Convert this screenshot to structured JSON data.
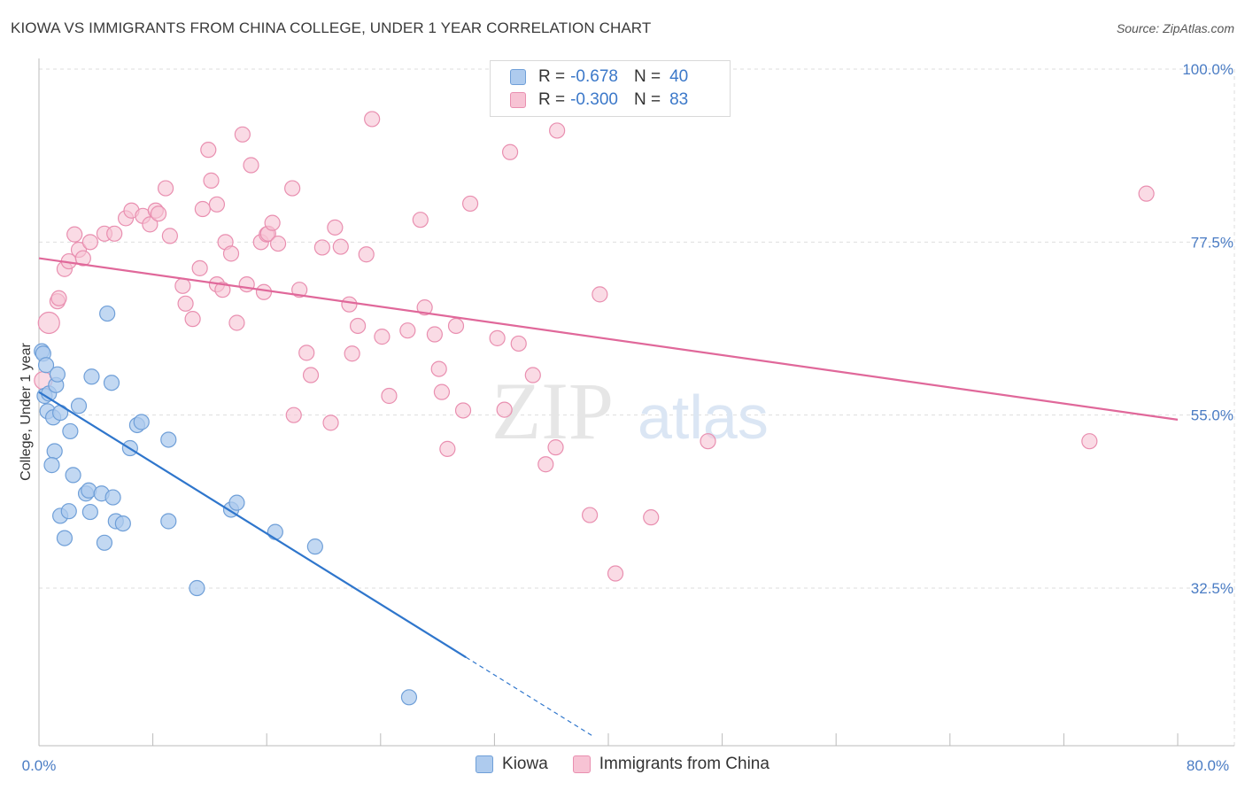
{
  "header": {
    "title": "KIOWA VS IMMIGRANTS FROM CHINA COLLEGE, UNDER 1 YEAR CORRELATION CHART",
    "source": "Source: ZipAtlas.com"
  },
  "watermark": {
    "part1": "ZIP",
    "part2": "atlas"
  },
  "legend": {
    "rows": [
      {
        "r_label": "R =",
        "r_value": "-0.678",
        "n_label": "N =",
        "n_value": "40"
      },
      {
        "r_label": "R =",
        "r_value": "-0.300",
        "n_label": "N =",
        "n_value": "83"
      }
    ]
  },
  "bottom_legend": {
    "kiowa": "Kiowa",
    "china": "Immigrants from China"
  },
  "colors": {
    "kiowa_fill": "#aecbee",
    "kiowa_stroke": "#6f9fd8",
    "kiowa_line": "#2f76cc",
    "china_fill": "#f7c3d4",
    "china_stroke": "#e98fb0",
    "china_line": "#e0689a",
    "grid": "#dedede",
    "axis_label": "#4a7cc4"
  },
  "chart_data": {
    "type": "scatter",
    "title": "KIOWA VS IMMIGRANTS FROM CHINA COLLEGE, UNDER 1 YEAR CORRELATION CHART",
    "xlabel": "",
    "ylabel": "College, Under 1 year",
    "xlim": [
      0,
      80
    ],
    "ylim": [
      12,
      100
    ],
    "x_tick_labels": [
      "0.0%",
      "80.0%"
    ],
    "y_ticks": [
      32.5,
      55.0,
      77.5,
      100.0
    ],
    "y_tick_labels": [
      "32.5%",
      "55.0%",
      "77.5%",
      "100.0%"
    ],
    "series": [
      {
        "name": "Kiowa",
        "R": -0.678,
        "N": 40,
        "trend": {
          "x0": 0,
          "y0": 58.0,
          "x1": 30,
          "y1": 23.5,
          "dash_to_x": 39
        },
        "points": [
          [
            0.2,
            63.3
          ],
          [
            0.3,
            63.0
          ],
          [
            0.5,
            61.5
          ],
          [
            0.4,
            57.5
          ],
          [
            0.7,
            57.8
          ],
          [
            1.2,
            58.9
          ],
          [
            1.3,
            60.3
          ],
          [
            0.6,
            55.5
          ],
          [
            1.0,
            54.7
          ],
          [
            1.5,
            55.3
          ],
          [
            2.8,
            56.2
          ],
          [
            1.1,
            50.3
          ],
          [
            0.9,
            48.5
          ],
          [
            2.2,
            52.9
          ],
          [
            3.7,
            60.0
          ],
          [
            5.1,
            59.2
          ],
          [
            6.9,
            53.7
          ],
          [
            7.2,
            54.1
          ],
          [
            6.4,
            50.7
          ],
          [
            9.1,
            51.8
          ],
          [
            2.4,
            47.2
          ],
          [
            3.3,
            44.8
          ],
          [
            3.5,
            45.2
          ],
          [
            4.4,
            44.8
          ],
          [
            5.2,
            44.3
          ],
          [
            1.5,
            41.9
          ],
          [
            2.1,
            42.5
          ],
          [
            3.6,
            42.4
          ],
          [
            5.4,
            41.2
          ],
          [
            5.9,
            40.9
          ],
          [
            9.1,
            41.2
          ],
          [
            13.5,
            42.7
          ],
          [
            13.9,
            43.6
          ],
          [
            1.8,
            39.0
          ],
          [
            4.6,
            38.4
          ],
          [
            16.6,
            39.8
          ],
          [
            19.4,
            37.9
          ],
          [
            11.1,
            32.5
          ],
          [
            26.0,
            18.3
          ],
          [
            4.8,
            68.2
          ]
        ]
      },
      {
        "name": "Immigrants from China",
        "R": -0.3,
        "N": 83,
        "trend": {
          "x0": 0,
          "y0": 75.4,
          "x1": 80,
          "y1": 54.4
        },
        "points": [
          [
            0.7,
            67.0
          ],
          [
            0.3,
            59.5
          ],
          [
            1.3,
            69.8
          ],
          [
            1.4,
            70.2
          ],
          [
            1.8,
            74.0
          ],
          [
            2.1,
            75.0
          ],
          [
            2.5,
            78.5
          ],
          [
            2.8,
            76.5
          ],
          [
            3.1,
            75.4
          ],
          [
            3.6,
            77.5
          ],
          [
            4.6,
            78.6
          ],
          [
            5.3,
            78.6
          ],
          [
            6.1,
            80.6
          ],
          [
            6.5,
            81.6
          ],
          [
            7.3,
            80.9
          ],
          [
            7.8,
            79.8
          ],
          [
            8.2,
            81.6
          ],
          [
            8.4,
            81.2
          ],
          [
            8.9,
            84.5
          ],
          [
            9.2,
            78.3
          ],
          [
            10.1,
            71.8
          ],
          [
            10.3,
            69.5
          ],
          [
            10.8,
            67.5
          ],
          [
            11.3,
            74.1
          ],
          [
            11.9,
            89.5
          ],
          [
            11.5,
            81.8
          ],
          [
            12.1,
            85.5
          ],
          [
            12.5,
            82.4
          ],
          [
            12.5,
            72.0
          ],
          [
            13.1,
            77.5
          ],
          [
            12.9,
            71.3
          ],
          [
            13.5,
            76.0
          ],
          [
            13.9,
            67.0
          ],
          [
            14.3,
            91.5
          ],
          [
            14.9,
            87.5
          ],
          [
            14.6,
            72.0
          ],
          [
            15.8,
            71.0
          ],
          [
            15.6,
            77.5
          ],
          [
            16.0,
            78.5
          ],
          [
            16.1,
            78.6
          ],
          [
            16.4,
            80.0
          ],
          [
            16.8,
            77.3
          ],
          [
            17.8,
            84.5
          ],
          [
            17.9,
            55.0
          ],
          [
            18.3,
            71.3
          ],
          [
            18.8,
            63.1
          ],
          [
            19.1,
            60.2
          ],
          [
            19.9,
            76.8
          ],
          [
            20.5,
            54.0
          ],
          [
            20.8,
            79.4
          ],
          [
            21.2,
            76.9
          ],
          [
            21.8,
            69.4
          ],
          [
            22.0,
            63.0
          ],
          [
            22.4,
            66.6
          ],
          [
            23.0,
            75.9
          ],
          [
            23.4,
            93.5
          ],
          [
            24.1,
            65.2
          ],
          [
            24.6,
            57.5
          ],
          [
            25.9,
            66.0
          ],
          [
            26.8,
            80.4
          ],
          [
            27.1,
            69.0
          ],
          [
            27.8,
            65.5
          ],
          [
            28.1,
            61.0
          ],
          [
            28.3,
            58.0
          ],
          [
            28.7,
            50.6
          ],
          [
            29.3,
            66.6
          ],
          [
            29.8,
            55.6
          ],
          [
            30.3,
            82.5
          ],
          [
            32.2,
            65.0
          ],
          [
            32.7,
            55.7
          ],
          [
            33.1,
            89.2
          ],
          [
            33.7,
            64.3
          ],
          [
            34.7,
            60.2
          ],
          [
            35.6,
            48.6
          ],
          [
            36.3,
            50.8
          ],
          [
            36.4,
            92.0
          ],
          [
            38.7,
            42.0
          ],
          [
            39.4,
            70.7
          ],
          [
            40.5,
            34.4
          ],
          [
            43.0,
            41.7
          ],
          [
            47.0,
            51.6
          ],
          [
            73.8,
            51.6
          ],
          [
            77.8,
            83.8
          ]
        ]
      }
    ]
  }
}
